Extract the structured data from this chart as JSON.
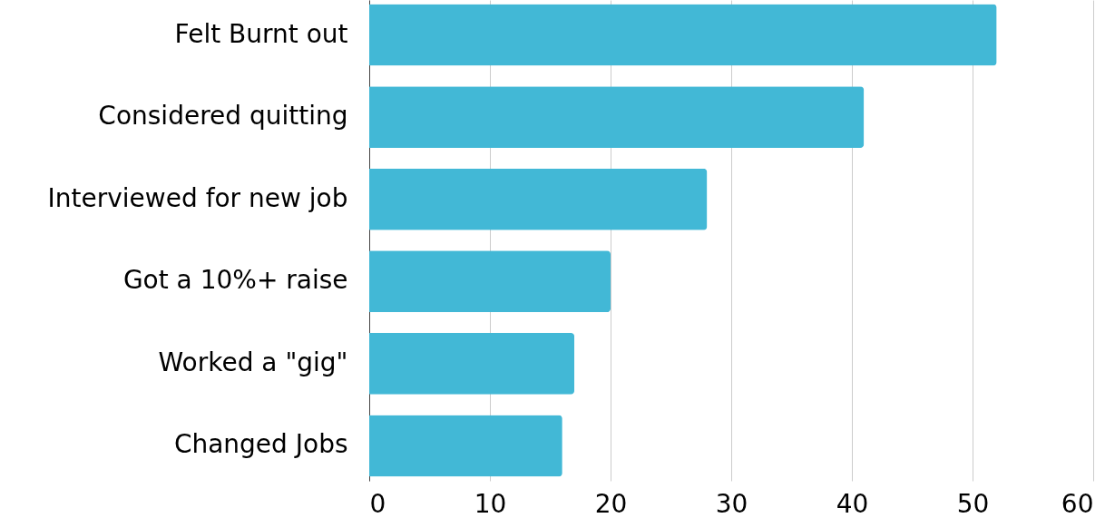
{
  "chart_data": {
    "type": "bar",
    "orientation": "horizontal",
    "categories": [
      "Felt Burnt out",
      "Considered quitting",
      "Interviewed for new job",
      "Got a 10%+ raise",
      "Worked a \"gig\"",
      "Changed Jobs"
    ],
    "values": [
      52,
      41,
      28,
      20,
      17,
      16
    ],
    "color": "#42b8d6",
    "xlim": [
      0,
      60
    ],
    "xticks": [
      0,
      10,
      20,
      30,
      40,
      50,
      60
    ],
    "grid": "x"
  }
}
